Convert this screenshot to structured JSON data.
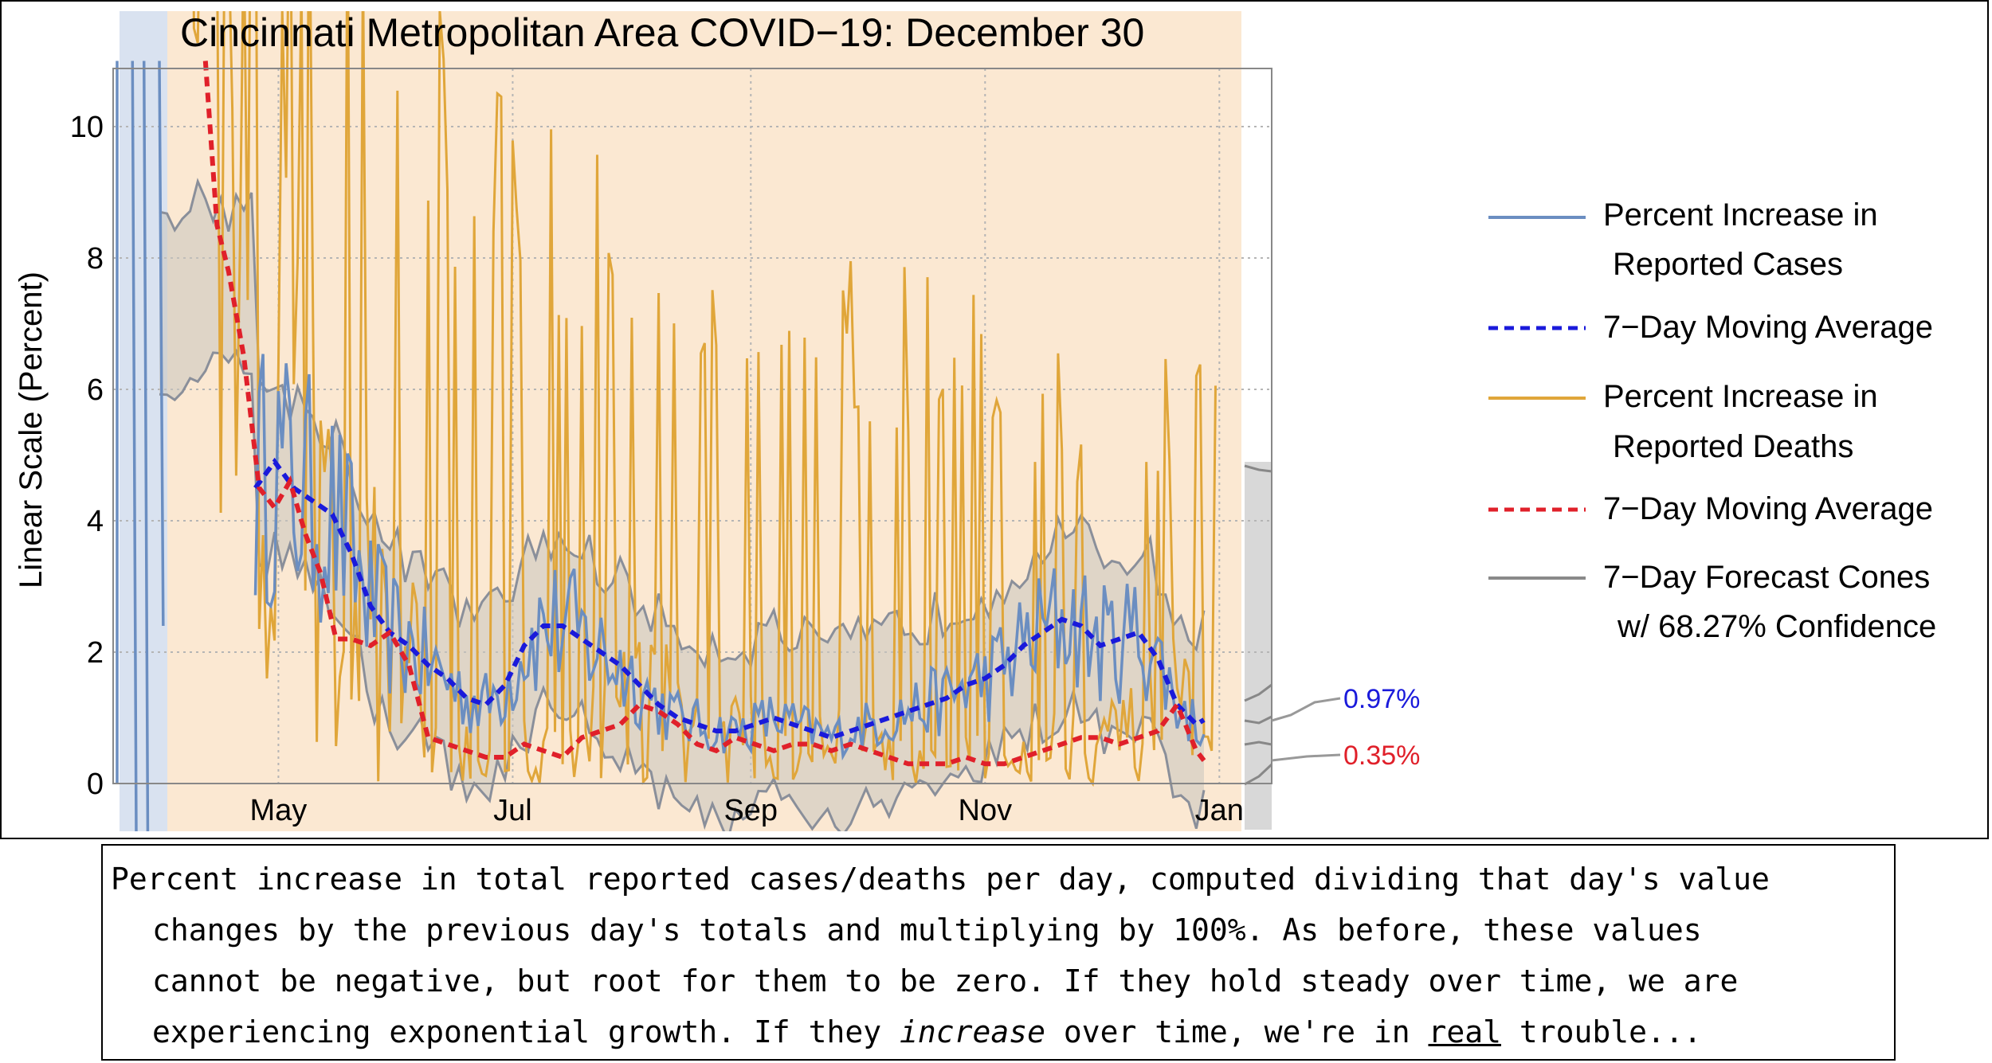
{
  "chart_data": {
    "type": "line",
    "title": "Cincinnati Metropolitan Area COVID−19: December 30",
    "ylabel": "Linear Scale (Percent)",
    "xlabel": "",
    "ylim": [
      0,
      10.9
    ],
    "yticks": [
      "0",
      "2",
      "4",
      "6",
      "8",
      "10"
    ],
    "ytick_values": [
      0,
      2,
      4,
      6,
      8,
      10
    ],
    "xticks": [
      "May",
      "Jul",
      "Sep",
      "Nov",
      "Jan"
    ],
    "xtick_days": [
      31,
      92,
      154,
      215,
      276
    ],
    "x_unit": "days since 2020-03-31",
    "legend": [
      {
        "line1": "Percent Increase in",
        "line2": "Reported Cases",
        "color": "#6b8ec1",
        "dash": false
      },
      {
        "line1": "7−Day Moving Average",
        "line2": "",
        "color": "#1a1adb",
        "dash": true
      },
      {
        "line1": "Percent Increase in",
        "line2": "Reported Deaths",
        "color": "#e0a63a",
        "dash": false
      },
      {
        "line1": "7−Day Moving Average",
        "line2": "",
        "color": "#e0202a",
        "dash": true
      },
      {
        "line1": "7−Day Forecast Cones",
        "line2": "w/ 68.27% Confidence",
        "color": "#8a8a8a",
        "dash": false
      }
    ],
    "annotations": [
      {
        "text": "0.97%",
        "color": "#1a1adb"
      },
      {
        "text": "0.35%",
        "color": "#e0202a"
      }
    ],
    "series": [
      {
        "name": "7-Day Moving Average (Cases)",
        "color": "#1a1adb",
        "x": [
          25,
          30,
          35,
          40,
          45,
          50,
          55,
          60,
          65,
          70,
          75,
          80,
          85,
          90,
          95,
          100,
          105,
          110,
          115,
          120,
          125,
          130,
          135,
          140,
          145,
          150,
          155,
          160,
          165,
          170,
          175,
          180,
          185,
          190,
          195,
          200,
          205,
          210,
          215,
          220,
          225,
          230,
          235,
          240,
          245,
          250,
          255,
          260,
          265,
          270,
          272
        ],
        "y": [
          4.5,
          4.9,
          4.5,
          4.3,
          4.1,
          3.5,
          2.7,
          2.3,
          2.1,
          1.8,
          1.6,
          1.3,
          1.2,
          1.5,
          2.1,
          2.4,
          2.4,
          2.2,
          2.0,
          1.8,
          1.5,
          1.2,
          1.0,
          0.9,
          0.8,
          0.8,
          0.9,
          1.0,
          0.9,
          0.8,
          0.7,
          0.8,
          0.9,
          1.0,
          1.1,
          1.2,
          1.3,
          1.5,
          1.6,
          1.8,
          2.1,
          2.3,
          2.5,
          2.4,
          2.1,
          2.2,
          2.3,
          1.9,
          1.2,
          0.9,
          0.97
        ]
      },
      {
        "name": "7-Day Moving Average (Deaths)",
        "color": "#e0202a",
        "x": [
          12,
          15,
          18,
          22,
          26,
          30,
          34,
          38,
          42,
          46,
          50,
          55,
          60,
          65,
          70,
          75,
          80,
          85,
          90,
          95,
          100,
          105,
          110,
          115,
          120,
          125,
          130,
          135,
          140,
          145,
          150,
          155,
          160,
          165,
          170,
          175,
          180,
          185,
          190,
          195,
          200,
          205,
          210,
          215,
          220,
          225,
          230,
          235,
          240,
          245,
          250,
          255,
          260,
          265,
          270,
          272
        ],
        "y": [
          11,
          8.5,
          7.8,
          6.5,
          4.5,
          4.2,
          4.6,
          3.8,
          3.2,
          2.2,
          2.2,
          2.1,
          2.3,
          1.8,
          0.7,
          0.6,
          0.5,
          0.4,
          0.4,
          0.6,
          0.5,
          0.4,
          0.7,
          0.8,
          0.9,
          1.2,
          1.1,
          0.9,
          0.6,
          0.5,
          0.7,
          0.6,
          0.5,
          0.6,
          0.6,
          0.5,
          0.6,
          0.5,
          0.4,
          0.3,
          0.3,
          0.3,
          0.4,
          0.3,
          0.3,
          0.4,
          0.5,
          0.6,
          0.7,
          0.7,
          0.6,
          0.7,
          0.8,
          1.2,
          0.5,
          0.35
        ]
      },
      {
        "name": "Percent Increase in Reported Deaths (envelope)",
        "color": "#e0a63a",
        "x": [
          40,
          60,
          80,
          100,
          120,
          140,
          160,
          180,
          200,
          220,
          240,
          260,
          275
        ],
        "y": [
          12,
          10,
          8.5,
          7.8,
          7.2,
          6.8,
          6.4,
          6.0,
          5.8,
          5.5,
          5.2,
          5.0,
          4.7
        ]
      }
    ]
  },
  "caption": {
    "line1": "Percent increase in total reported cases/deaths per day, computed dividing that day's value",
    "line2": "changes by the previous day's totals and multiplying by 100%. As before, these values",
    "line3": "cannot be negative, but root for them to be zero. If they hold steady over time, we are",
    "line4_a": "experiencing exponential growth. If they ",
    "line4_em": "increase",
    "line4_b": " over time, we're in ",
    "line4_u": "real",
    "line4_c": " trouble..."
  }
}
